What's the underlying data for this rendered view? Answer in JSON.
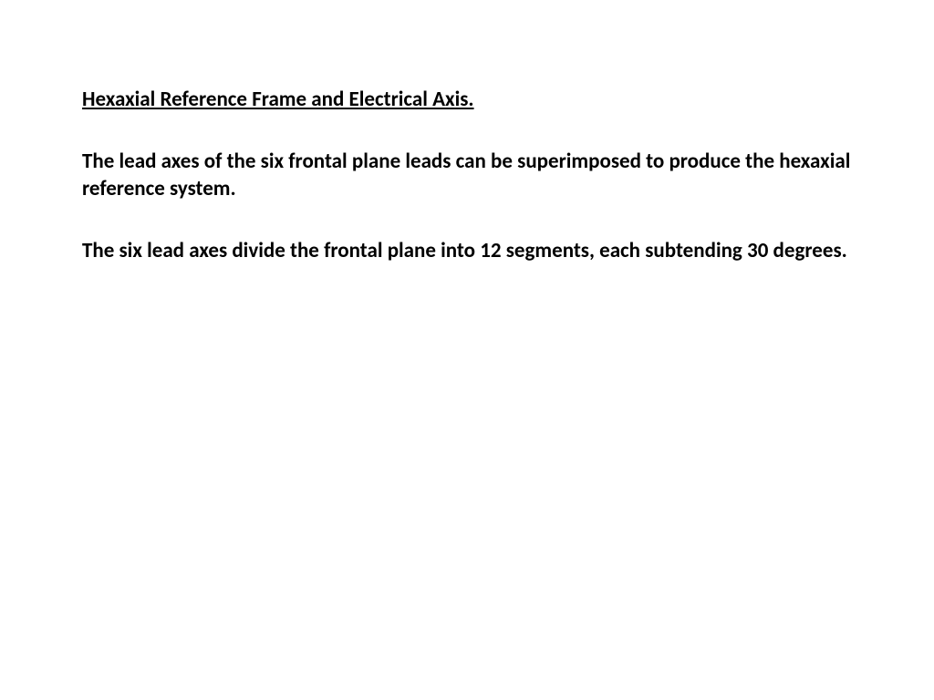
{
  "document": {
    "title": "Hexaxial Reference Frame and Electrical Axis.",
    "paragraph1": "The lead axes of the six frontal plane leads can be superimposed to produce the hexaxial reference system.",
    "paragraph2": "The six lead axes divide the frontal plane into 12 segments, each subtending 30 degrees.",
    "text_color": "#000000",
    "background_color": "#ffffff",
    "font_size": 23,
    "font_weight": "bold",
    "font_family": "Calibri"
  }
}
